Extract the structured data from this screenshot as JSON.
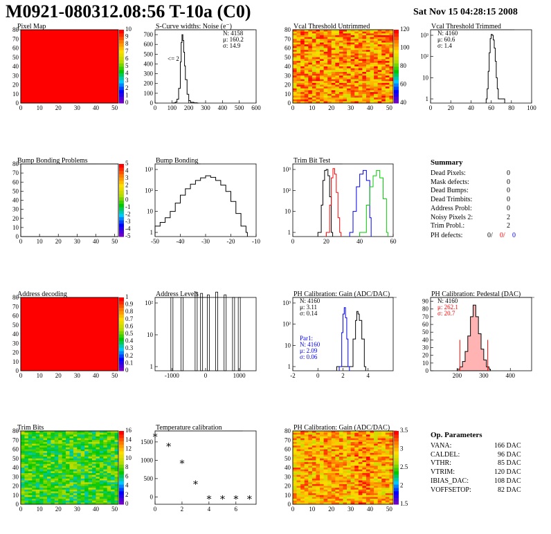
{
  "page": {
    "title": "M0921-080312.08:56 T-10a (C0)",
    "date": "Sat Nov 15 04:28:15 2008"
  },
  "colors": {
    "red": "#ff0000",
    "blue": "#0000ee",
    "green": "#00cc00",
    "black": "#000000"
  },
  "summary": {
    "title": "Summary",
    "rows": [
      {
        "label": "Dead Pixels:",
        "value": "0"
      },
      {
        "label": "Mask defects:",
        "value": "0"
      },
      {
        "label": "Dead Bumps:",
        "value": "0"
      },
      {
        "label": "Dead Trimbits:",
        "value": "0"
      },
      {
        "label": "Address Probl:",
        "value": "0"
      },
      {
        "label": "Noisy Pixels 2:",
        "value": "2"
      },
      {
        "label": "Trim Probl.:",
        "value": "2"
      }
    ],
    "ph_label": "PH defects:",
    "ph_values": [
      "0/",
      "0/",
      "0"
    ]
  },
  "op_params": {
    "title": "Op. Parameters",
    "rows": [
      {
        "label": "VANA:",
        "value": "166 DAC"
      },
      {
        "label": "CALDEL:",
        "value": "96 DAC"
      },
      {
        "label": "VTHR:",
        "value": "85 DAC"
      },
      {
        "label": "VTRIM:",
        "value": "120 DAC"
      },
      {
        "label": "IBIAS_DAC:",
        "value": "108 DAC"
      },
      {
        "label": "VOFFSETOP:",
        "value": "82 DAC"
      }
    ]
  },
  "chart_data": [
    {
      "id": "pixel-map",
      "type": "heatmap",
      "title": "Pixel Map",
      "x_range": [
        0,
        52
      ],
      "y_range": [
        0,
        80
      ],
      "x_ticks": [
        "0",
        "10",
        "20",
        "30",
        "40",
        "50"
      ],
      "y_ticks": [
        "0",
        "10",
        "20",
        "30",
        "40",
        "50",
        "60",
        "70",
        "80"
      ],
      "palette": "uniform",
      "color_scale": [
        "0",
        "1",
        "2",
        "3",
        "4",
        "5",
        "6",
        "7",
        "8",
        "9",
        "10"
      ]
    },
    {
      "id": "scurve-noise",
      "type": "line",
      "title": "S-Curve widths: Noise (e⁻)",
      "xlim": [
        0,
        600
      ],
      "ylim": [
        0,
        750
      ],
      "x_ticks": [
        "0",
        "100",
        "200",
        "300",
        "400",
        "500",
        "600"
      ],
      "y_ticks": [
        "0",
        "100",
        "200",
        "300",
        "400",
        "500",
        "600",
        "700"
      ],
      "stats": [
        "N: 4158",
        "μ: 160.2",
        "σ: 14.9"
      ],
      "annotation": "<= 2",
      "x": [
        100,
        110,
        120,
        130,
        140,
        150,
        155,
        160,
        165,
        170,
        175,
        180,
        190,
        200,
        210,
        230,
        250
      ],
      "y": [
        0,
        2,
        10,
        40,
        150,
        420,
        620,
        700,
        640,
        520,
        380,
        240,
        90,
        25,
        8,
        3,
        0
      ]
    },
    {
      "id": "vcal-untrimmed",
      "type": "heatmap",
      "title": "Vcal Threshold Untrimmed",
      "x_range": [
        0,
        52
      ],
      "y_range": [
        0,
        80
      ],
      "x_ticks": [
        "0",
        "10",
        "20",
        "30",
        "40",
        "50"
      ],
      "y_ticks": [
        "0",
        "10",
        "20",
        "30",
        "40",
        "50",
        "60",
        "70",
        "80"
      ],
      "palette": "warm-noise",
      "color_scale": [
        "40",
        "60",
        "80",
        "100",
        "120"
      ]
    },
    {
      "id": "vcal-trimmed",
      "type": "line",
      "title": "Vcal Threshold Trimmed",
      "xlim": [
        0,
        100
      ],
      "log_y": true,
      "x_ticks": [
        "0",
        "20",
        "40",
        "60",
        "80",
        "100"
      ],
      "y_ticks": [
        "1",
        "10",
        "10²",
        "10³"
      ],
      "stats": [
        "N: 4160",
        "μ: 60.6",
        "σ: 1.4"
      ],
      "x": [
        55,
        56,
        57,
        58,
        59,
        60,
        61,
        62,
        63,
        64,
        65,
        66,
        67,
        70,
        71,
        72
      ],
      "y": [
        1,
        3,
        20,
        150,
        700,
        1100,
        1000,
        600,
        250,
        60,
        10,
        3,
        1,
        1,
        1,
        1
      ]
    },
    {
      "id": "bump-map",
      "type": "heatmap",
      "title": "Bump Bonding Problems",
      "x_range": [
        0,
        52
      ],
      "y_range": [
        0,
        80
      ],
      "x_ticks": [
        "0",
        "10",
        "20",
        "30",
        "40",
        "50"
      ],
      "y_ticks": [
        "0",
        "10",
        "20",
        "30",
        "40",
        "50",
        "60",
        "70",
        "80"
      ],
      "palette": "empty",
      "color_scale": [
        "-5",
        "-4",
        "-3",
        "-2",
        "-1",
        "0",
        "1",
        "2",
        "3",
        "4",
        "5"
      ]
    },
    {
      "id": "bump-bonding",
      "type": "line",
      "title": "Bump Bonding",
      "xlim": [
        -50,
        -10
      ],
      "log_y": true,
      "x_ticks": [
        "-50",
        "-40",
        "-30",
        "-20",
        "-10"
      ],
      "y_ticks": [
        "1",
        "10",
        "10²",
        "10³"
      ],
      "x": [
        -50,
        -48,
        -46,
        -44,
        -42,
        -40,
        -38,
        -36,
        -34,
        -32,
        -30,
        -28,
        -26,
        -24,
        -22,
        -20,
        -18,
        -16,
        -14
      ],
      "y": [
        2,
        3,
        5,
        10,
        25,
        60,
        120,
        200,
        300,
        400,
        500,
        420,
        300,
        180,
        90,
        30,
        8,
        2,
        1
      ]
    },
    {
      "id": "trim-bit-test",
      "type": "line",
      "title": "Trim Bit Test",
      "xlim": [
        0,
        60
      ],
      "log_y": true,
      "x_ticks": [
        "0",
        "20",
        "40",
        "60"
      ],
      "y_ticks": [
        "1",
        "10",
        "10²",
        "10³"
      ],
      "series": [
        {
          "color": "#000000",
          "x": [
            15,
            17,
            18,
            19,
            20,
            21,
            22,
            23
          ],
          "y": [
            1,
            20,
            300,
            900,
            1000,
            500,
            50,
            1
          ]
        },
        {
          "color": "#ff0000",
          "x": [
            20,
            22,
            23,
            24,
            25,
            26,
            27,
            28
          ],
          "y": [
            1,
            20,
            400,
            1100,
            600,
            80,
            5,
            1
          ]
        },
        {
          "color": "#0000ee",
          "x": [
            34,
            36,
            38,
            40,
            42,
            44,
            46
          ],
          "y": [
            1,
            10,
            150,
            600,
            900,
            300,
            5
          ]
        },
        {
          "color": "#00cc00",
          "x": [
            40,
            44,
            46,
            48,
            50,
            52,
            54,
            56
          ],
          "y": [
            1,
            20,
            150,
            500,
            900,
            400,
            40,
            1
          ]
        }
      ]
    },
    {
      "id": "address-decoding",
      "type": "heatmap",
      "title": "Address decoding",
      "x_range": [
        0,
        52
      ],
      "y_range": [
        0,
        80
      ],
      "x_ticks": [
        "0",
        "10",
        "20",
        "30",
        "40",
        "50"
      ],
      "y_ticks": [
        "0",
        "10",
        "20",
        "30",
        "40",
        "50",
        "60",
        "70",
        "80"
      ],
      "palette": "uniform",
      "color_scale": [
        "0",
        "0.1",
        "0.2",
        "0.3",
        "0.4",
        "0.5",
        "0.6",
        "0.7",
        "0.8",
        "0.9",
        "1"
      ]
    },
    {
      "id": "address-levels",
      "type": "bar",
      "title": "Address Levels",
      "xlim": [
        -1500,
        1500
      ],
      "log_y": true,
      "x_ticks": [
        "-1000",
        "0",
        "1000"
      ],
      "y_ticks": [
        "1",
        "10",
        "10²"
      ],
      "peaks": [
        {
          "x": -1000,
          "y": 150
        },
        {
          "x": -700,
          "y": 150
        },
        {
          "x": -280,
          "y": 220
        },
        {
          "x": -120,
          "y": 200
        },
        {
          "x": 80,
          "y": 180
        },
        {
          "x": 330,
          "y": 220
        },
        {
          "x": 580,
          "y": 180
        },
        {
          "x": 830,
          "y": 150
        },
        {
          "x": 1000,
          "y": 150
        }
      ]
    },
    {
      "id": "ph-gain-hist",
      "type": "line",
      "title": "PH Calibration: Gain (ADC/DAC)",
      "xlim": [
        -2,
        6
      ],
      "log_y": true,
      "x_ticks": [
        "-2",
        "0",
        "2",
        "4"
      ],
      "y_ticks": [
        "1",
        "10",
        "10²",
        "10³"
      ],
      "stats": [
        "N: 4160",
        "μ: 3.11",
        "σ: 0.14"
      ],
      "par1": [
        "Par1:",
        "N: 4160",
        "μ: 2.09",
        "σ: 0.06"
      ],
      "series": [
        {
          "color": "#000000",
          "x": [
            1.5,
            2.5,
            2.8,
            3.0,
            3.1,
            3.2,
            3.3,
            3.5,
            3.7
          ],
          "y": [
            1,
            1,
            20,
            150,
            400,
            300,
            150,
            20,
            1
          ]
        },
        {
          "color": "#0000ee",
          "x": [
            1.7,
            1.9,
            2.0,
            2.1,
            2.2,
            2.3,
            2.4
          ],
          "y": [
            1,
            40,
            300,
            600,
            200,
            20,
            1
          ]
        }
      ]
    },
    {
      "id": "ph-pedestal",
      "type": "line",
      "title": "PH Calibration: Pedestal (DAC)",
      "xlim": [
        100,
        480
      ],
      "ylim": [
        0,
        95
      ],
      "x_ticks": [
        "200",
        "300",
        "400"
      ],
      "y_ticks": [
        "0",
        "10",
        "20",
        "30",
        "40",
        "50",
        "60",
        "70",
        "80",
        "90"
      ],
      "stats": [
        "N: 4160",
        "μ: 262.1",
        "σ: 20.7"
      ],
      "cut_lines": [
        210,
        315
      ],
      "x": [
        200,
        210,
        220,
        230,
        240,
        250,
        260,
        270,
        280,
        290,
        300,
        310,
        320
      ],
      "y": [
        2,
        5,
        12,
        25,
        45,
        70,
        85,
        70,
        48,
        28,
        14,
        5,
        2
      ]
    },
    {
      "id": "trim-bits-map",
      "type": "heatmap",
      "title": "Trim Bits",
      "x_range": [
        0,
        52
      ],
      "y_range": [
        0,
        80
      ],
      "x_ticks": [
        "0",
        "10",
        "20",
        "30",
        "40",
        "50"
      ],
      "y_ticks": [
        "0",
        "10",
        "20",
        "30",
        "40",
        "50",
        "60",
        "70",
        "80"
      ],
      "palette": "green-noise",
      "color_scale": [
        "0",
        "2",
        "4",
        "6",
        "8",
        "10",
        "12",
        "14",
        "16"
      ]
    },
    {
      "id": "temperature-calibration",
      "type": "scatter",
      "title": "Temperature calibration",
      "xlim": [
        0,
        7.5
      ],
      "ylim": [
        -200,
        1800
      ],
      "x_ticks": [
        "0",
        "2",
        "4",
        "6"
      ],
      "y_ticks": [
        "0",
        "500",
        "1000",
        "1500"
      ],
      "x": [
        0,
        1,
        2,
        3,
        4,
        5,
        6,
        7
      ],
      "y": [
        1700,
        1430,
        970,
        400,
        0,
        0,
        0,
        0
      ]
    },
    {
      "id": "ph-gain-map",
      "type": "heatmap",
      "title": "PH Calibration: Gain (ADC/DAC)",
      "x_range": [
        0,
        52
      ],
      "y_range": [
        0,
        80
      ],
      "x_ticks": [
        "0",
        "10",
        "20",
        "30",
        "40",
        "50"
      ],
      "y_ticks": [
        "0",
        "10",
        "20",
        "30",
        "40",
        "50",
        "60",
        "70",
        "80"
      ],
      "palette": "gain-noise",
      "color_scale": [
        "1.5",
        "2",
        "2.5",
        "3",
        "3.5"
      ]
    }
  ]
}
